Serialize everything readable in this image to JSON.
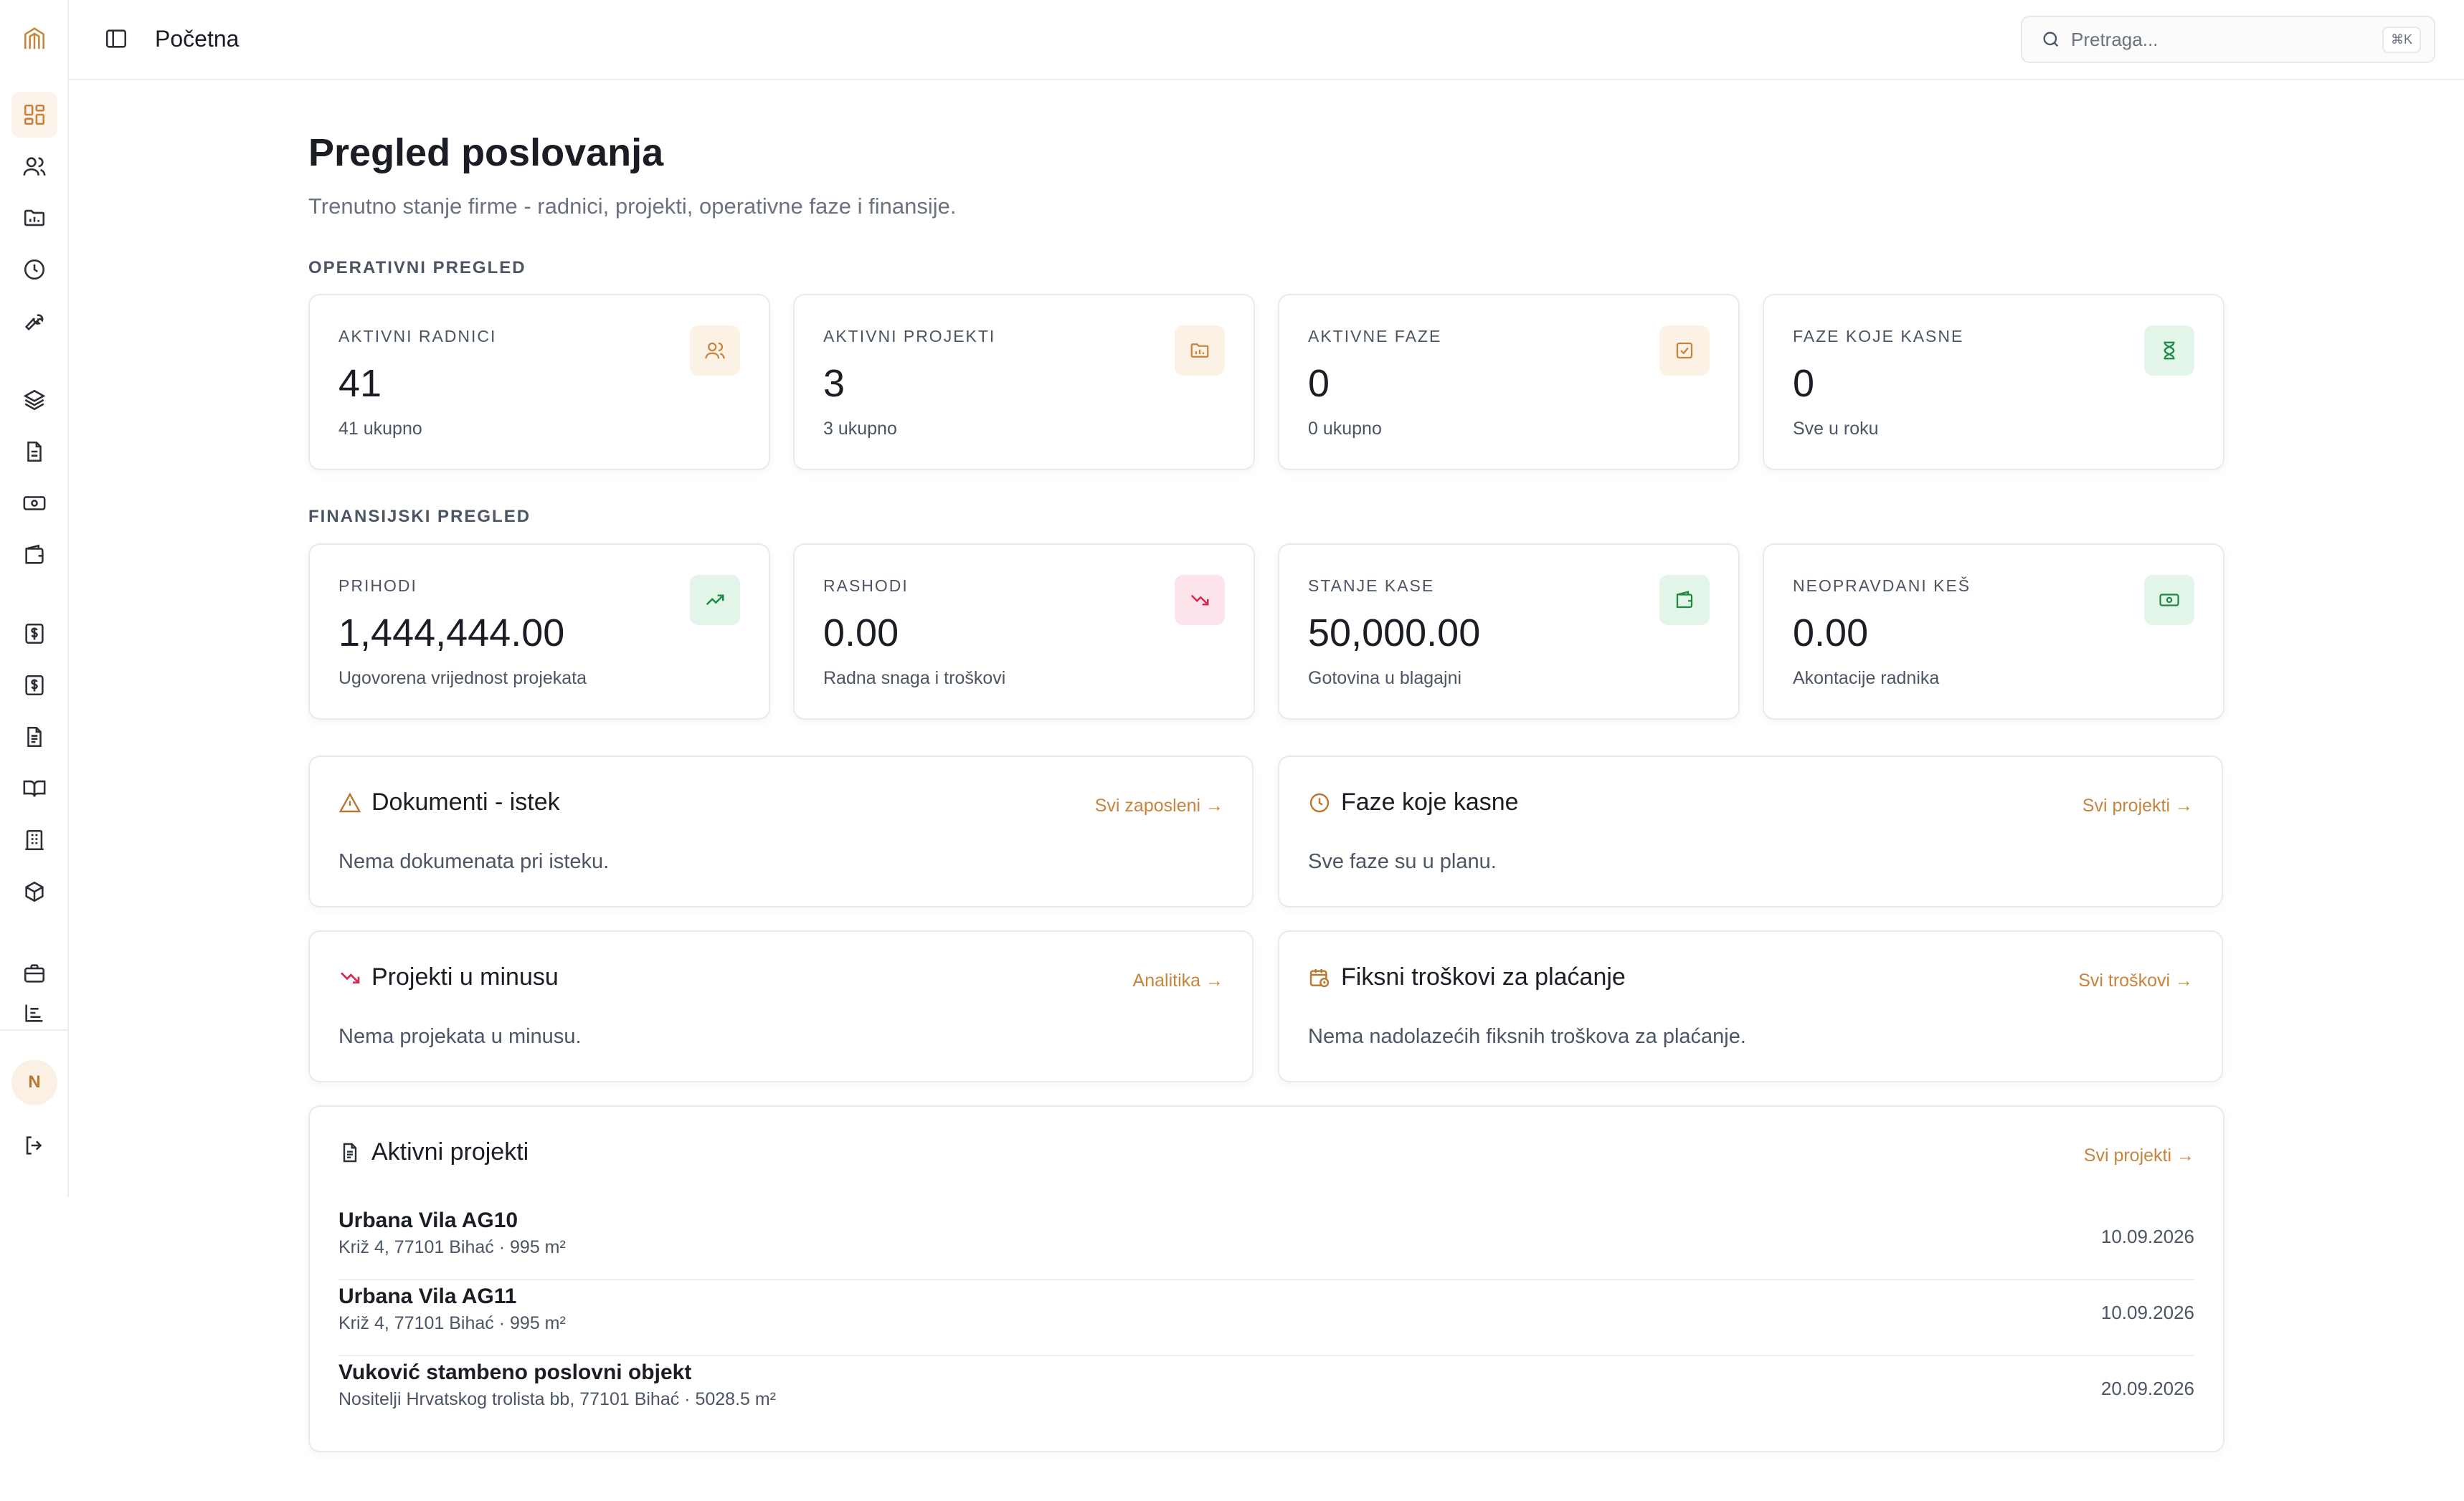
{
  "header": {
    "title": "Početna",
    "search_placeholder": "Pretraga...",
    "search_shortcut": "⌘K"
  },
  "sidebar": {
    "avatar_initial": "N",
    "icons": [
      "dashboard-icon",
      "users-icon",
      "folder-chart-icon",
      "clock-icon",
      "wrench-icon",
      "layers-icon",
      "document-icon",
      "banknote-icon",
      "wallet-icon",
      "dollar-receipt-icon",
      "dollar-receipt-icon",
      "file-text-icon",
      "book-open-icon",
      "building-icon",
      "box-icon",
      "briefcase-icon",
      "chart-list-icon",
      "logout-icon"
    ]
  },
  "page": {
    "title": "Pregled poslovanja",
    "subtitle": "Trenutno stanje firme - radnici, projekti, operativne faze i finansije.",
    "operational_label": "OPERATIVNI PREGLED",
    "financial_label": "FINANSIJSKI PREGLED"
  },
  "operational": [
    {
      "label": "AKTIVNI RADNICI",
      "value": "41",
      "sub": "41 ukupno",
      "icon": "users-icon"
    },
    {
      "label": "AKTIVNI PROJEKTI",
      "value": "3",
      "sub": "3 ukupno",
      "icon": "folder-chart-icon"
    },
    {
      "label": "AKTIVNE FAZE",
      "value": "0",
      "sub": "0 ukupno",
      "icon": "check-square-icon"
    },
    {
      "label": "FAZE KOJE KASNE",
      "value": "0",
      "sub": "Sve u roku",
      "icon": "hourglass-icon"
    }
  ],
  "financial": [
    {
      "label": "PRIHODI",
      "value": "1,444,444.00",
      "sub": "Ugovorena vrijednost projekata",
      "icon": "trending-up-icon"
    },
    {
      "label": "RASHODI",
      "value": "0.00",
      "sub": "Radna snaga i troškovi",
      "icon": "trending-down-icon"
    },
    {
      "label": "STANJE KASE",
      "value": "50,000.00",
      "sub": "Gotovina u blagajni",
      "icon": "wallet-icon"
    },
    {
      "label": "NEOPRAVDANI KEŠ",
      "value": "0.00",
      "sub": "Akontacije radnika",
      "icon": "banknote-icon"
    }
  ],
  "panels": [
    {
      "title": "Dokumenti - istek",
      "link": "Svi zaposleni →",
      "body": "Nema dokumenata pri isteku.",
      "icon": "warning-icon"
    },
    {
      "title": "Faze koje kasne",
      "link": "Svi projekti →",
      "body": "Sve faze su u planu.",
      "icon": "clock-icon"
    },
    {
      "title": "Projekti u minusu",
      "link": "Analitika →",
      "body": "Nema projekata u minusu.",
      "icon": "trending-down-icon"
    },
    {
      "title": "Fiksni troškovi za plaćanje",
      "link": "Svi troškovi →",
      "body": "Nema nadolazećih fiksnih troškova za plaćanje.",
      "icon": "calendar-clock-icon"
    }
  ],
  "active_projects": {
    "title": "Aktivni projekti",
    "link": "Svi projekti →",
    "icon": "file-text-icon",
    "rows": [
      {
        "name": "Urbana Vila AG10",
        "meta": "Križ 4, 77101 Bihać · 995 m²",
        "date": "10.09.2026"
      },
      {
        "name": "Urbana Vila AG11",
        "meta": "Križ 4, 77101 Bihać · 995 m²",
        "date": "10.09.2026"
      },
      {
        "name": "Vuković stambeno poslovni objekt",
        "meta": "Nositelji Hrvatskog trolista bb, 77101 Bihać · 5028.5 m²",
        "date": "20.09.2026"
      }
    ]
  },
  "colors": {
    "accent": "#c7843c",
    "green_bg": "#e3f4e8",
    "green_fg": "#1f8a46",
    "red_bg": "#fde4ea",
    "red_fg": "#d6294f",
    "amber_bg": "#fbf1e5",
    "amber_fg": "#c7843c"
  }
}
